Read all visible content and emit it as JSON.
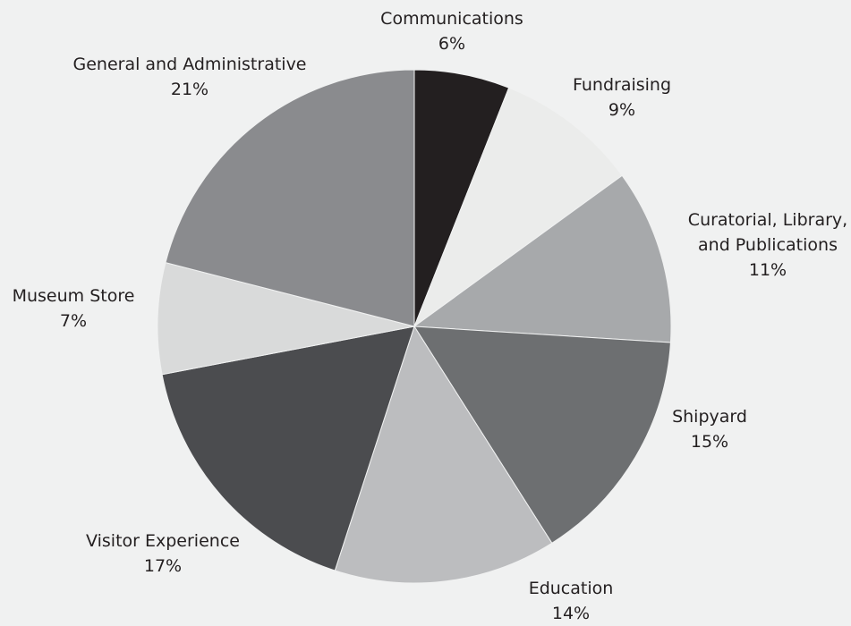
{
  "chart_data": {
    "type": "pie",
    "categories": [
      "Communications",
      "Fundraising",
      "Curatorial, Library, and Publications",
      "Shipyard",
      "Education",
      "Visitor Experience",
      "Museum Store",
      "General and Administrative"
    ],
    "values": [
      6,
      9,
      11,
      15,
      14,
      17,
      7,
      21
    ],
    "value_labels": [
      "6%",
      "9%",
      "11%",
      "15%",
      "14%",
      "17%",
      "7%",
      "21%"
    ],
    "colors": [
      "#231f20",
      "#ebeceb",
      "#a7a9ab",
      "#6d6f71",
      "#bcbdbf",
      "#4b4c4f",
      "#d9dada",
      "#8a8b8e"
    ]
  }
}
